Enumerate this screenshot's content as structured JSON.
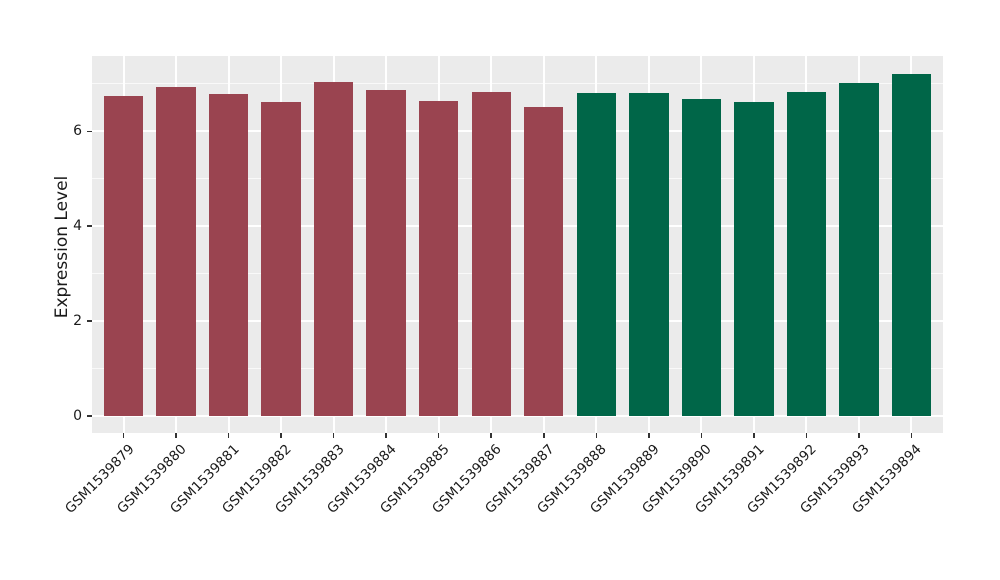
{
  "figure": {
    "background": "#FFFFFF"
  },
  "chart_data": {
    "type": "bar",
    "title": "",
    "xlabel": "",
    "ylabel": "Expression Level",
    "categories": [
      "GSM1539879",
      "GSM1539880",
      "GSM1539881",
      "GSM1539882",
      "GSM1539883",
      "GSM1539884",
      "GSM1539885",
      "GSM1539886",
      "GSM1539887",
      "GSM1539888",
      "GSM1539889",
      "GSM1539890",
      "GSM1539891",
      "GSM1539892",
      "GSM1539893",
      "GSM1539894"
    ],
    "values": [
      6.74,
      6.93,
      6.78,
      6.62,
      7.05,
      6.88,
      6.64,
      6.83,
      6.51,
      6.82,
      6.81,
      6.68,
      6.62,
      6.84,
      7.03,
      7.21
    ],
    "bar_colors": [
      "#9A4450",
      "#9A4450",
      "#9A4450",
      "#9A4450",
      "#9A4450",
      "#9A4450",
      "#9A4450",
      "#9A4450",
      "#9A4450",
      "#006648",
      "#006648",
      "#006648",
      "#006648",
      "#006648",
      "#006648",
      "#006648"
    ],
    "y_axis": {
      "ticks": [
        0,
        2,
        4,
        6
      ],
      "minor_ticks": [
        1,
        3,
        5,
        7
      ],
      "range": [
        -0.36,
        7.59
      ],
      "grid": true
    },
    "style": {
      "panel_background": "#EBEBEB",
      "grid_color": "#FFFFFF",
      "tick_color": "#333333",
      "text_color": "#1A1A1A",
      "bar_width_frac": 0.75
    }
  }
}
